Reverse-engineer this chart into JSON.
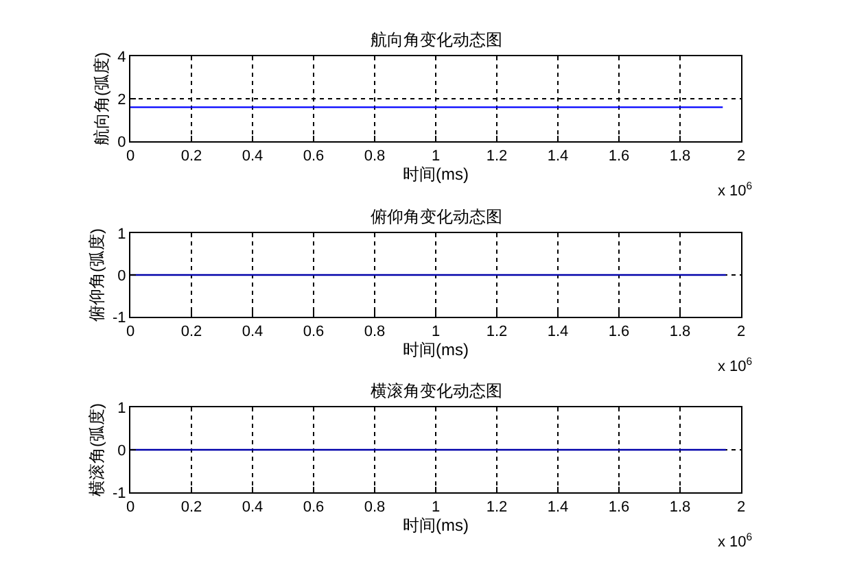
{
  "chart_data": [
    {
      "type": "line",
      "title": "航向角变化动态图",
      "xlabel": "时间(ms)",
      "ylabel": "航向角(弧度)",
      "x": [
        0,
        1.94
      ],
      "series": [
        {
          "color": "#0000ff",
          "values": [
            1.6,
            1.6
          ]
        }
      ],
      "xlim": [
        0,
        2
      ],
      "xticks": [
        0,
        0.2,
        0.4,
        0.6,
        0.8,
        1,
        1.2,
        1.4,
        1.6,
        1.8,
        2
      ],
      "ylim": [
        0,
        4
      ],
      "yticks": [
        0,
        2,
        4
      ],
      "grid": true,
      "annotations": [
        "x 10$^{6}$"
      ]
    },
    {
      "type": "line",
      "title": "俯仰角变化动态图",
      "xlabel": "时间(ms)",
      "ylabel": "俯仰角(弧度)",
      "x": [
        0,
        1.95
      ],
      "series": [
        {
          "color": "#0000aa",
          "values": [
            0,
            0
          ]
        }
      ],
      "xlim": [
        0,
        2
      ],
      "xticks": [
        0,
        0.2,
        0.4,
        0.6,
        0.8,
        1,
        1.2,
        1.4,
        1.6,
        1.8,
        2
      ],
      "ylim": [
        -1,
        1
      ],
      "yticks": [
        -1,
        0,
        1
      ],
      "grid": true,
      "annotations": [
        "x 10$^{6}$"
      ]
    },
    {
      "type": "line",
      "title": "横滚角变化动态图",
      "xlabel": "时间(ms)",
      "ylabel": "横滚角(弧度)",
      "x": [
        0,
        1.95
      ],
      "series": [
        {
          "color": "#0000aa",
          "values": [
            0,
            0
          ]
        }
      ],
      "xlim": [
        0,
        2
      ],
      "xticks": [
        0,
        0.2,
        0.4,
        0.6,
        0.8,
        1,
        1.2,
        1.4,
        1.6,
        1.8,
        2
      ],
      "ylim": [
        -1,
        1
      ],
      "yticks": [
        -1,
        0,
        1
      ],
      "grid": true,
      "annotations": [
        "x 10$^{6}$"
      ]
    }
  ]
}
